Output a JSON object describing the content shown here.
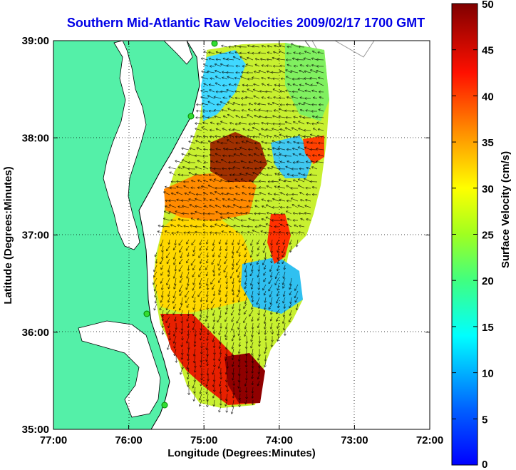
{
  "title": "Southern Mid-Atlantic Raw Velocities 2009/02/17 1700 GMT",
  "map": {
    "xlabel": "Longitude (Degrees:Minutes)",
    "ylabel": "Latitude (Degrees:Minutes)",
    "xticks": [
      "77:00",
      "76:00",
      "75:00",
      "74:00",
      "73:00",
      "72:00"
    ],
    "yticks": [
      "39:00",
      "38:00",
      "37:00",
      "36:00",
      "35:00"
    ],
    "lon_range": [
      -77,
      -72
    ],
    "lat_range": [
      35,
      39
    ],
    "land_color": "#54f0a8",
    "water_color": "#ffffff",
    "station_color": "#33dd33"
  },
  "colorbar": {
    "label": "Surface Velocity (cm/s)",
    "ticks": [
      "50",
      "45",
      "40",
      "35",
      "30",
      "25",
      "20",
      "15",
      "10",
      "5",
      "0"
    ],
    "range": [
      0,
      50
    ]
  }
}
